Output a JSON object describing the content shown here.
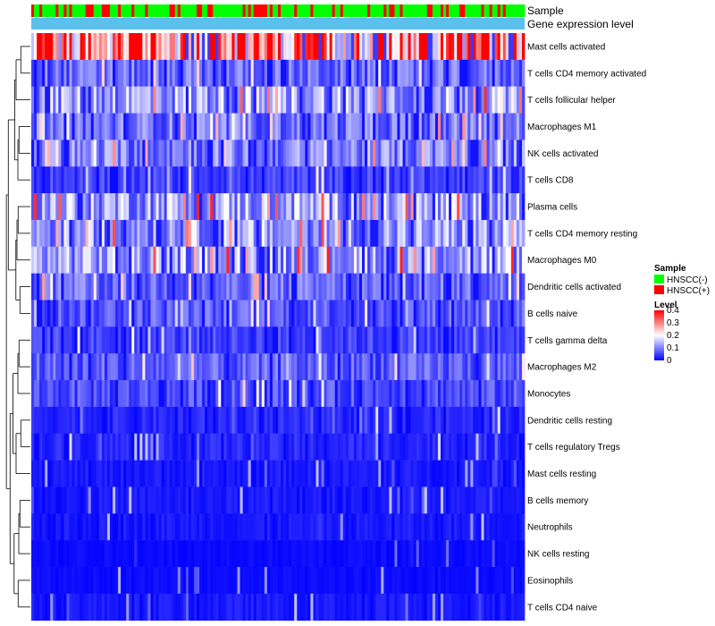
{
  "chart_data": {
    "type": "heatmap",
    "title": "",
    "annotation_tracks": [
      {
        "name": "Sample",
        "type": "categorical"
      },
      {
        "name": "Gene expression level",
        "type": "constant",
        "color": "#5bc0eb"
      }
    ],
    "rows": [
      {
        "label": "Mast cells activated",
        "mean": 0.3
      },
      {
        "label": "T cells CD4 memory activated",
        "mean": 0.08
      },
      {
        "label": "T cells follicular helper",
        "mean": 0.13
      },
      {
        "label": "Macrophages M1",
        "mean": 0.09
      },
      {
        "label": "NK cells activated",
        "mean": 0.1
      },
      {
        "label": "T cells CD8",
        "mean": 0.05
      },
      {
        "label": "Plasma cells",
        "mean": 0.13
      },
      {
        "label": "T cells CD4 memory resting",
        "mean": 0.12
      },
      {
        "label": "Macrophages M0",
        "mean": 0.13
      },
      {
        "label": "Dendritic cells activated",
        "mean": 0.08
      },
      {
        "label": "B cells naive",
        "mean": 0.07
      },
      {
        "label": "T cells gamma delta",
        "mean": 0.05
      },
      {
        "label": "Macrophages M2",
        "mean": 0.07
      },
      {
        "label": "Monocytes",
        "mean": 0.06
      },
      {
        "label": "Dendritic cells resting",
        "mean": 0.03
      },
      {
        "label": "T cells regulatory  Tregs",
        "mean": 0.03
      },
      {
        "label": "Mast cells resting",
        "mean": 0.02
      },
      {
        "label": "B cells memory",
        "mean": 0.02
      },
      {
        "label": "Neutrophils",
        "mean": 0.02
      },
      {
        "label": "NK cells resting",
        "mean": 0.01
      },
      {
        "label": "Eosinophils",
        "mean": 0.01
      },
      {
        "label": "T cells CD4 naive",
        "mean": 0.02
      }
    ],
    "n_samples": 182,
    "sample_groups": [
      "HNSCC(-)",
      "HNSCC(+)"
    ],
    "color_scale": {
      "min": 0,
      "max": 0.4,
      "low": "#0000ff",
      "mid": "#ffffff",
      "high": "#ff0000",
      "mid_value": 0.2
    },
    "legend": {
      "position": "right",
      "sample": {
        "title": "Sample",
        "entries": [
          {
            "label": "HNSCC(-)",
            "color": "#00ff00"
          },
          {
            "label": "HNSCC(+)",
            "color": "#ff0000"
          }
        ]
      },
      "level": {
        "title": "Level",
        "ticks": [
          "0.4",
          "0.3",
          "0.2",
          "0.1",
          "0"
        ]
      }
    },
    "dendrogram": "rows"
  }
}
